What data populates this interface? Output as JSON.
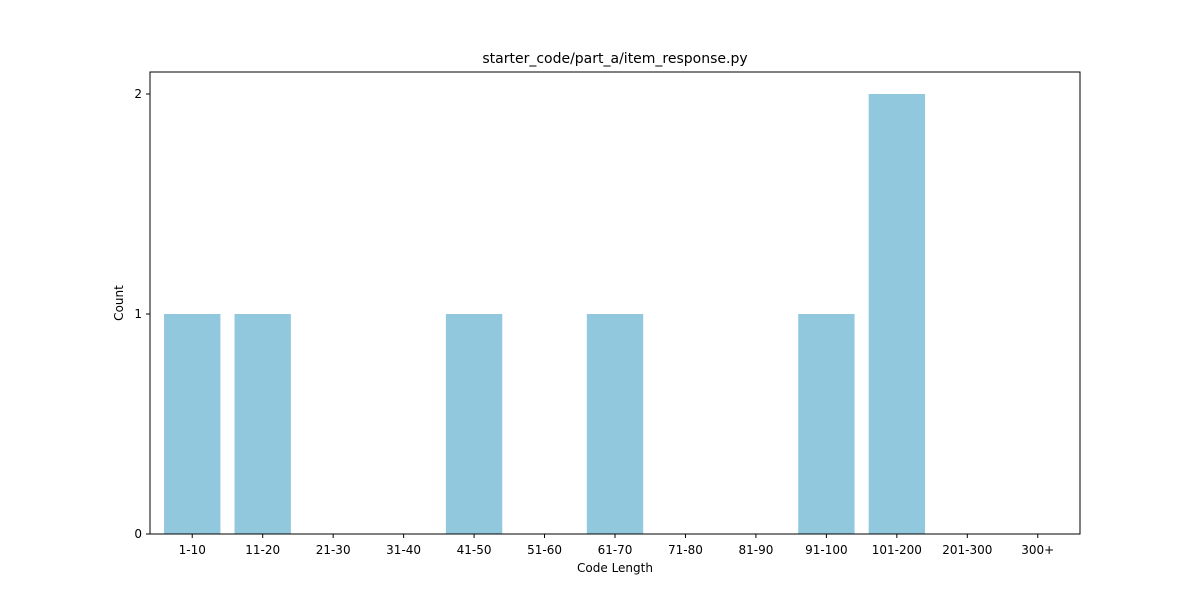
{
  "chart_data": {
    "type": "bar",
    "title": "starter_code/part_a/item_response.py",
    "xlabel": "Code Length",
    "ylabel": "Count",
    "categories": [
      "1-10",
      "11-20",
      "21-30",
      "31-40",
      "41-50",
      "51-60",
      "61-70",
      "71-80",
      "81-90",
      "91-100",
      "101-200",
      "201-300",
      "300+"
    ],
    "values": [
      1,
      1,
      0,
      0,
      1,
      0,
      1,
      0,
      0,
      1,
      2,
      0,
      0
    ],
    "yticks": [
      0,
      1,
      2
    ],
    "ylim": [
      0,
      2.1
    ],
    "grid": false,
    "legend": "none",
    "bar_color": "#92c8dd"
  }
}
